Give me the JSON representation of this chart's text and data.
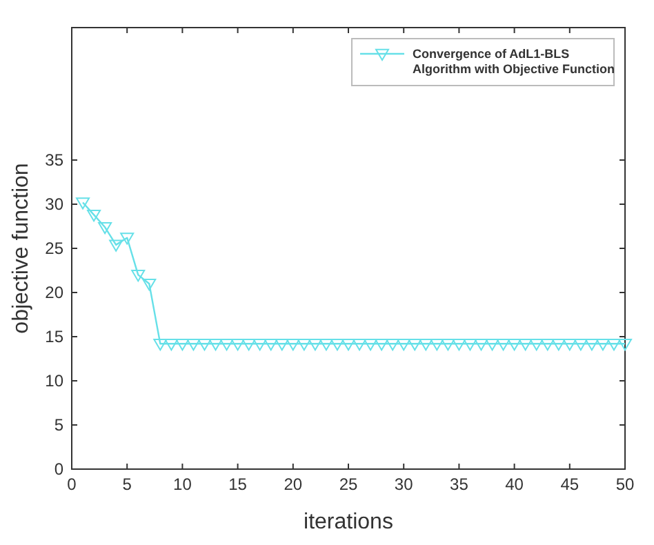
{
  "chart_data": {
    "type": "line",
    "xlabel": "iterations",
    "ylabel": "objective function",
    "x": [
      1,
      2,
      3,
      4,
      5,
      6,
      7,
      8,
      9,
      10,
      11,
      12,
      13,
      14,
      15,
      16,
      17,
      18,
      19,
      20,
      21,
      22,
      23,
      24,
      25,
      26,
      27,
      28,
      29,
      30,
      31,
      32,
      33,
      34,
      35,
      36,
      37,
      38,
      39,
      40,
      41,
      42,
      43,
      44,
      45,
      46,
      47,
      48,
      49,
      50
    ],
    "series": [
      {
        "name": "Convergence of AdL1-BLS\nAlgorithm with Objective Function",
        "color": "#66e0e8",
        "values": [
          30.2,
          28.8,
          27.4,
          25.4,
          26.2,
          22,
          21,
          14.2,
          14.2,
          14.2,
          14.2,
          14.2,
          14.2,
          14.2,
          14.2,
          14.2,
          14.2,
          14.2,
          14.2,
          14.2,
          14.2,
          14.2,
          14.2,
          14.2,
          14.2,
          14.2,
          14.2,
          14.2,
          14.2,
          14.2,
          14.2,
          14.2,
          14.2,
          14.2,
          14.2,
          14.2,
          14.2,
          14.2,
          14.2,
          14.2,
          14.2,
          14.2,
          14.2,
          14.2,
          14.2,
          14.2,
          14.2,
          14.2,
          14.2,
          14.2
        ]
      }
    ],
    "xlim": [
      0,
      50
    ],
    "ylim": [
      0,
      50
    ],
    "xticks": [
      0,
      5,
      10,
      15,
      20,
      25,
      30,
      35,
      40,
      45,
      50
    ],
    "yticks": [
      0,
      5,
      10,
      15,
      20,
      25,
      30,
      35
    ],
    "marker": "triangle-down",
    "legend": "top right",
    "grid": false
  }
}
